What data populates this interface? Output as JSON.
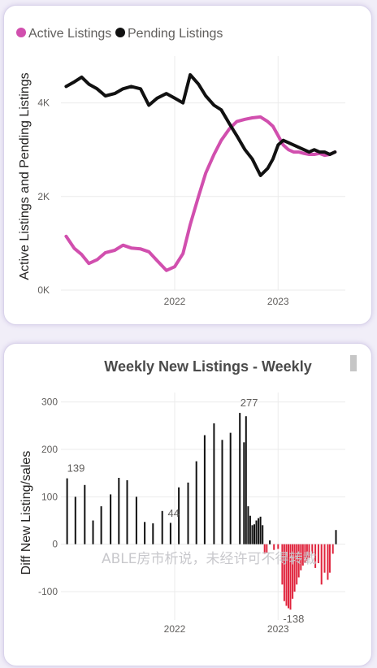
{
  "chart_data": [
    {
      "type": "line",
      "legend_position": "top-left",
      "ylabel": "Active Listings and Pending Listings",
      "y_ticks": [
        "0K",
        "2K",
        "4K"
      ],
      "ylim": [
        0,
        5000
      ],
      "x_ticks": [
        "2022",
        "2023"
      ],
      "x_tick_values": [
        2022.0,
        2023.0
      ],
      "xlim": [
        2020.9,
        2023.65
      ],
      "grid": true,
      "series": [
        {
          "name": "Active Listings",
          "color": "#d14fae",
          "x": [
            2020.95,
            2021.03,
            2021.1,
            2021.17,
            2021.25,
            2021.33,
            2021.42,
            2021.5,
            2021.58,
            2021.67,
            2021.75,
            2021.83,
            2021.92,
            2022.0,
            2022.08,
            2022.15,
            2022.23,
            2022.3,
            2022.38,
            2022.45,
            2022.53,
            2022.6,
            2022.68,
            2022.75,
            2022.83,
            2022.9,
            2022.95,
            2023.0,
            2023.05,
            2023.1,
            2023.15,
            2023.2,
            2023.25,
            2023.3,
            2023.35,
            2023.4,
            2023.45,
            2023.5,
            2023.55
          ],
          "values": [
            1150,
            890,
            760,
            570,
            650,
            800,
            850,
            960,
            900,
            880,
            820,
            630,
            420,
            500,
            780,
            1400,
            2000,
            2500,
            2900,
            3200,
            3450,
            3600,
            3650,
            3680,
            3700,
            3600,
            3500,
            3300,
            3100,
            3000,
            2950,
            2950,
            2920,
            2900,
            2900,
            2920,
            2880,
            2900,
            2950
          ]
        },
        {
          "name": "Pending Listings",
          "color": "#111111",
          "x": [
            2020.95,
            2021.03,
            2021.1,
            2021.17,
            2021.25,
            2021.33,
            2021.42,
            2021.5,
            2021.58,
            2021.67,
            2021.75,
            2021.83,
            2021.92,
            2022.0,
            2022.08,
            2022.15,
            2022.23,
            2022.3,
            2022.38,
            2022.45,
            2022.53,
            2022.6,
            2022.68,
            2022.75,
            2022.83,
            2022.9,
            2022.95,
            2023.0,
            2023.05,
            2023.1,
            2023.15,
            2023.2,
            2023.25,
            2023.3,
            2023.35,
            2023.4,
            2023.45,
            2023.5,
            2023.55
          ],
          "values": [
            4350,
            4450,
            4550,
            4400,
            4300,
            4150,
            4200,
            4300,
            4350,
            4300,
            3950,
            4100,
            4200,
            4100,
            4000,
            4600,
            4400,
            4150,
            3950,
            3850,
            3550,
            3300,
            3000,
            2800,
            2450,
            2600,
            2800,
            3100,
            3200,
            3150,
            3100,
            3050,
            3000,
            2950,
            3000,
            2950,
            2950,
            2900,
            2950
          ]
        }
      ]
    },
    {
      "type": "bar",
      "title": "Weekly New Listings - Weekly",
      "ylabel": "Diff New Listing/sales",
      "y_ticks": [
        "300",
        "200",
        "100",
        "0",
        "-100"
      ],
      "ylim": [
        -160,
        320
      ],
      "x_ticks": [
        "2022",
        "2023"
      ],
      "x_tick_values": [
        2022.0,
        2023.0
      ],
      "xlim": [
        2020.9,
        2023.65
      ],
      "grid": true,
      "positive_color": "#111111",
      "negative_color": "#e0243d",
      "data_labels": [
        {
          "text": "139",
          "x": 2020.96,
          "value": 139
        },
        {
          "text": "44",
          "x": 2021.99,
          "value": 44
        },
        {
          "text": "277",
          "x": 2022.72,
          "value": 277
        },
        {
          "text": "-138",
          "x": 2023.15,
          "value": -138
        }
      ],
      "x": [
        2020.96,
        2021.04,
        2021.13,
        2021.21,
        2021.29,
        2021.38,
        2021.46,
        2021.54,
        2021.63,
        2021.71,
        2021.79,
        2021.88,
        2021.96,
        2022.04,
        2022.13,
        2022.21,
        2022.29,
        2022.38,
        2022.46,
        2022.54,
        2022.63,
        2022.67,
        2022.69,
        2022.71,
        2022.73,
        2022.75,
        2022.77,
        2022.79,
        2022.81,
        2022.83,
        2022.85,
        2022.87,
        2022.89,
        2022.92,
        2022.96,
        2023.0,
        2023.04,
        2023.06,
        2023.08,
        2023.1,
        2023.12,
        2023.14,
        2023.16,
        2023.18,
        2023.2,
        2023.22,
        2023.24,
        2023.26,
        2023.28,
        2023.3,
        2023.33,
        2023.36,
        2023.39,
        2023.42,
        2023.45,
        2023.48,
        2023.5,
        2023.53,
        2023.56
      ],
      "values": [
        139,
        100,
        125,
        50,
        80,
        105,
        140,
        135,
        100,
        47,
        44,
        70,
        45,
        120,
        130,
        175,
        230,
        255,
        220,
        235,
        277,
        215,
        270,
        80,
        60,
        40,
        42,
        50,
        55,
        58,
        40,
        -20,
        -18,
        8,
        -12,
        -10,
        -85,
        -120,
        -130,
        -135,
        -138,
        -115,
        -100,
        -85,
        -70,
        -55,
        -45,
        -40,
        -35,
        -30,
        -20,
        -50,
        -40,
        -85,
        -60,
        -75,
        -60,
        -20,
        30
      ]
    }
  ],
  "watermark": "ABLE房市析说，未经许可不得转载",
  "scrollbar": {
    "visible": true
  }
}
